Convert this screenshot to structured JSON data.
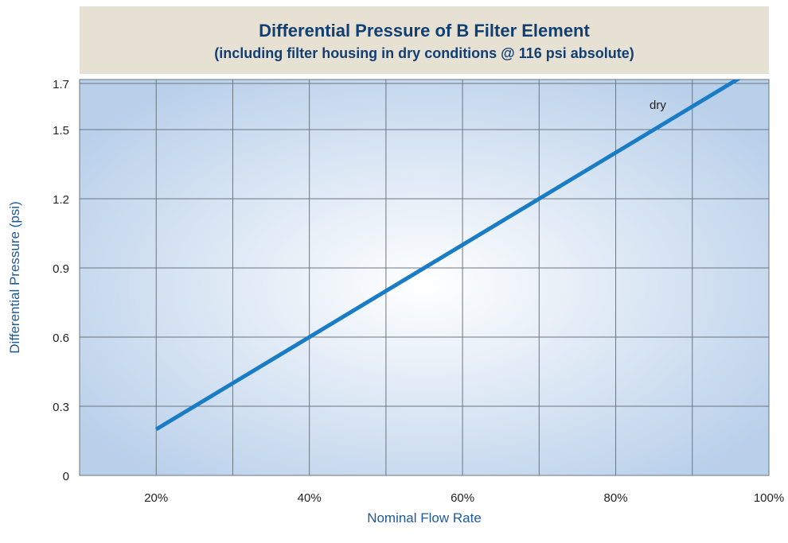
{
  "chart_data": {
    "type": "line",
    "title": "Differential Pressure of B Filter Element",
    "subtitle": "(including filter housing in dry conditions @ 116 psi absolute)",
    "xlabel": "Nominal Flow Rate",
    "ylabel": "Differential Pressure (psi)",
    "x_ticks": [
      "20%",
      "40%",
      "60%",
      "80%",
      "100%"
    ],
    "y_ticks": [
      "0",
      "0.3",
      "0.6",
      "0.9",
      "1.2",
      "1.5",
      "1.7"
    ],
    "x_tick_values": [
      20,
      40,
      60,
      80,
      100
    ],
    "y_tick_values": [
      0,
      0.3,
      0.6,
      0.9,
      1.2,
      1.5,
      1.7
    ],
    "xlim": [
      10,
      100
    ],
    "ylim": [
      0,
      1.7
    ],
    "grid": true,
    "series": [
      {
        "name": "dry",
        "x": [
          20,
          30,
          40,
          50,
          60,
          70,
          80,
          90,
          100
        ],
        "y": [
          0.2,
          0.4,
          0.6,
          0.8,
          1.0,
          1.2,
          1.4,
          1.6,
          1.8
        ]
      }
    ],
    "annotations": [
      {
        "text": "dry",
        "x": 85.5,
        "y": 1.59
      }
    ]
  },
  "colors": {
    "title_bg": "#e6e1d3",
    "title_text": "#123f73",
    "axis_title": "#1e5a9a",
    "line": "#1a7cc4",
    "grid": "#6b7580",
    "plot_center": "#ffffff",
    "plot_edge": "#b9d0ea"
  }
}
